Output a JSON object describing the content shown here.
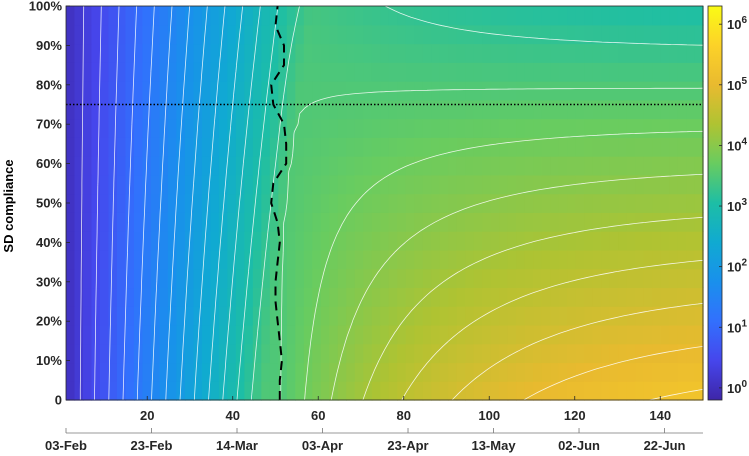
{
  "chart_data": {
    "type": "heatmap",
    "title": "",
    "xlabel": "",
    "ylabel": "SD compliance",
    "xlim": [
      1,
      150
    ],
    "ylim": [
      0,
      100
    ],
    "x_ticks": [
      20,
      40,
      60,
      80,
      100,
      120,
      140
    ],
    "x_tick_labels": [
      "20",
      "40",
      "60",
      "80",
      "100",
      "120",
      "140"
    ],
    "date_ticks": [
      "03-Feb",
      "23-Feb",
      "14-Mar",
      "03-Apr",
      "23-Apr",
      "13-May",
      "02-Jun",
      "22-Jun"
    ],
    "y_ticks": [
      0,
      10,
      20,
      30,
      40,
      50,
      60,
      70,
      80,
      90,
      100
    ],
    "y_tick_labels": [
      "0",
      "10%",
      "20%",
      "30%",
      "40%",
      "50%",
      "60%",
      "70%",
      "80%",
      "90%",
      "100%"
    ],
    "colorbar": {
      "scale": "log",
      "range_log10": [
        -0.2,
        6.3
      ],
      "tick_exponents": [
        0,
        1,
        2,
        3,
        4,
        5,
        6
      ],
      "tick_base": "10",
      "colormap": "parula"
    },
    "reference_line": {
      "orientation": "horizontal",
      "y": 75,
      "style": "dotted"
    },
    "peak_timing_curve": [
      {
        "y": 0,
        "x": 51
      },
      {
        "y": 5,
        "x": 51
      },
      {
        "y": 10,
        "x": 51.5
      },
      {
        "y": 15,
        "x": 51
      },
      {
        "y": 20,
        "x": 50.5
      },
      {
        "y": 25,
        "x": 50
      },
      {
        "y": 30,
        "x": 50
      },
      {
        "y": 35,
        "x": 50.5
      },
      {
        "y": 40,
        "x": 51
      },
      {
        "y": 45,
        "x": 50.5
      },
      {
        "y": 50,
        "x": 49
      },
      {
        "y": 55,
        "x": 49.5
      },
      {
        "y": 60,
        "x": 52.5
      },
      {
        "y": 65,
        "x": 52.5
      },
      {
        "y": 70,
        "x": 52
      },
      {
        "y": 75,
        "x": 49.5
      },
      {
        "y": 80,
        "x": 49
      },
      {
        "y": 85,
        "x": 52
      },
      {
        "y": 90,
        "x": 52
      },
      {
        "y": 95,
        "x": 50
      },
      {
        "y": 100,
        "x": 50.5
      }
    ]
  }
}
